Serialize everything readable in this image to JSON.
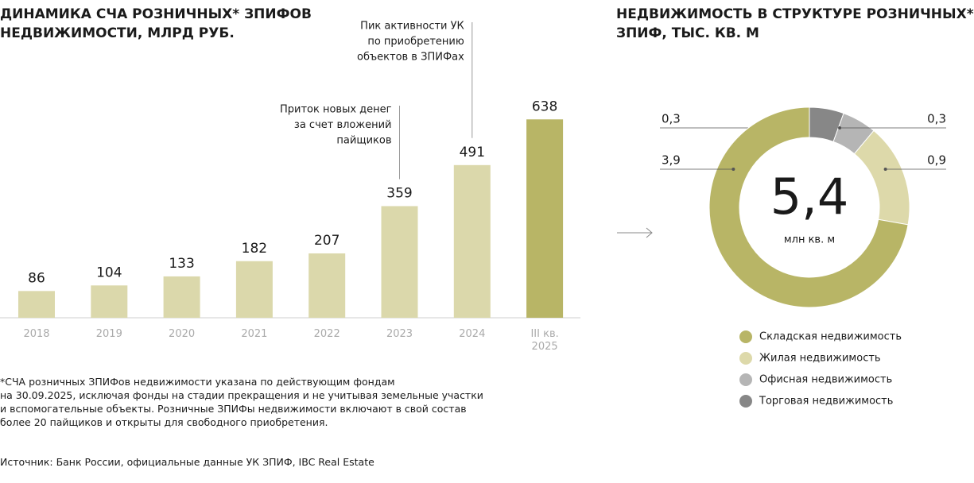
{
  "chart_data": [
    {
      "type": "bar",
      "title": [
        "ДИНАМИКА СЧА РОЗНИЧНЫХ* ЗПИФОВ",
        "НЕДВИЖИМОСТИ, МЛРД РУБ."
      ],
      "categories": [
        "2018",
        "2019",
        "2020",
        "2021",
        "2022",
        "2023",
        "2024",
        "III кв. 2025"
      ],
      "values": [
        86,
        104,
        133,
        182,
        207,
        359,
        491,
        638
      ],
      "colors": [
        "#dbd8ab",
        "#dbd8ab",
        "#dbd8ab",
        "#dbd8ab",
        "#dbd8ab",
        "#dbd8ab",
        "#dbd8ab",
        "#b8b566"
      ],
      "ylim": [
        0,
        700
      ],
      "annotations": [
        {
          "x": "2023",
          "lines": [
            "Приток новых денег",
            "за счет вложений",
            "пайщиков"
          ]
        },
        {
          "x": "2024",
          "lines": [
            "Пик активности УК",
            "по приобретению",
            "объектов в ЗПИФах"
          ]
        }
      ],
      "footnote": [
        "*СЧА розничных ЗПИФов недвижимости указана по действующим фондам",
        "на 30.09.2025, исключая фонды на стадии прекращения и не учитывая земельные участки",
        "и вспомогательные объекты. Розничные ЗПИФы недвижимости включают в свой состав",
        "более 20 пайщиков и открыты для свободного приобретения."
      ],
      "source": "Источник: Банк России, официальные данные УК ЗПИФ, IBC Real Estate"
    },
    {
      "type": "donut",
      "title": [
        "НЕДВИЖИМОСТЬ В СТРУКТУРЕ РОЗНИЧНЫХ*",
        "ЗПИФ, ТЫС. КВ. М"
      ],
      "categories": [
        "Складская недвижимость",
        "Жилая недвижимость",
        "Офисная недвижимость",
        "Торговая недвижимость"
      ],
      "values": [
        3.9,
        0.9,
        0.3,
        0.3
      ],
      "value_labels": [
        "3,9",
        "0,9",
        "0,3",
        "0,3"
      ],
      "colors": [
        "#b8b566",
        "#ddd9aa",
        "#b5b5b5",
        "#878787"
      ],
      "total": {
        "value": 5.4,
        "label": "5,4"
      },
      "total_unit": "млн кв. м"
    }
  ]
}
